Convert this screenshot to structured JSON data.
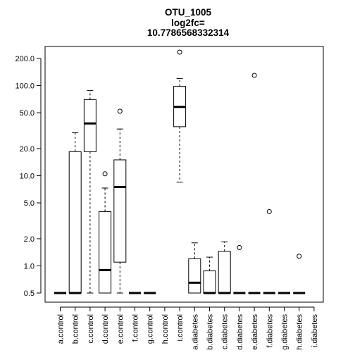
{
  "chart_data": {
    "type": "boxplot",
    "title_lines": [
      "OTU_1005",
      "log2fc=",
      "10.7786568332314"
    ],
    "y_scale": "log",
    "ylim": [
      0.45,
      260
    ],
    "y_ticks": [
      0.5,
      1.0,
      2.0,
      5.0,
      10.0,
      20.0,
      50.0,
      100.0,
      200.0
    ],
    "y_tick_labels": [
      "0.5",
      "1.0",
      "2.0",
      "5.0",
      "10.0",
      "20.0",
      "50.0",
      "100.0",
      "200.0"
    ],
    "categories": [
      "a.control",
      "b.control",
      "c.control",
      "d.control",
      "e.control",
      "f.control",
      "g.control",
      "h.control",
      "i.control",
      "a.diabetes",
      "b.diabetes",
      "c.diabetes",
      "d.diabetes",
      "e.diabetes",
      "f.diabetes",
      "g.diabetes",
      "h.diabetes",
      "i.diabetes"
    ],
    "boxes": [
      {
        "min": 0.5,
        "q1": 0.5,
        "median": 0.5,
        "q3": 0.5,
        "max": 0.5,
        "outliers": []
      },
      {
        "min": 0.5,
        "q1": 0.5,
        "median": 0.5,
        "q3": 18.5,
        "max": 30,
        "outliers": []
      },
      {
        "min": 0.5,
        "q1": 18.5,
        "median": 38,
        "q3": 70,
        "max": 88,
        "outliers": []
      },
      {
        "min": 0.5,
        "q1": 0.5,
        "median": 0.9,
        "q3": 4.0,
        "max": 7.3,
        "outliers": [
          10.5
        ]
      },
      {
        "min": 0.5,
        "q1": 1.1,
        "median": 7.5,
        "q3": 15.0,
        "max": 33,
        "outliers": [
          52
        ]
      },
      {
        "min": 0.5,
        "q1": 0.5,
        "median": 0.5,
        "q3": 0.5,
        "max": 0.5,
        "outliers": []
      },
      {
        "min": 0.5,
        "q1": 0.5,
        "median": 0.5,
        "q3": 0.5,
        "max": 0.5,
        "outliers": []
      },
      null,
      {
        "min": 8.5,
        "q1": 35,
        "median": 58,
        "q3": 98,
        "max": 120,
        "outliers": [
          235
        ]
      },
      {
        "min": 0.5,
        "q1": 0.5,
        "median": 0.65,
        "q3": 1.2,
        "max": 1.8,
        "outliers": []
      },
      {
        "min": 0.5,
        "q1": 0.5,
        "median": 0.5,
        "q3": 0.88,
        "max": 1.25,
        "outliers": []
      },
      {
        "min": 0.5,
        "q1": 0.5,
        "median": 0.5,
        "q3": 1.45,
        "max": 1.85,
        "outliers": []
      },
      {
        "min": 0.5,
        "q1": 0.5,
        "median": 0.5,
        "q3": 0.5,
        "max": 0.5,
        "outliers": [
          1.6
        ]
      },
      {
        "min": 0.5,
        "q1": 0.5,
        "median": 0.5,
        "q3": 0.5,
        "max": 0.5,
        "outliers": [
          130
        ]
      },
      {
        "min": 0.5,
        "q1": 0.5,
        "median": 0.5,
        "q3": 0.5,
        "max": 0.5,
        "outliers": [
          4.0
        ]
      },
      {
        "min": 0.5,
        "q1": 0.5,
        "median": 0.5,
        "q3": 0.5,
        "max": 0.5,
        "outliers": []
      },
      {
        "min": 0.5,
        "q1": 0.5,
        "median": 0.5,
        "q3": 0.5,
        "max": 0.5,
        "outliers": [
          1.28
        ]
      },
      null
    ],
    "grid": false,
    "legend": "none"
  }
}
